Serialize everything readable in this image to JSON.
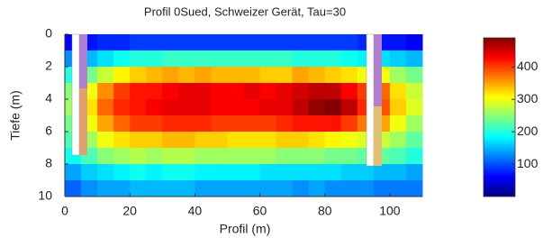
{
  "chart_data": {
    "type": "heatmap",
    "title": "Profil 0Sued, Schweizer Gerät, Tau=30",
    "xlabel": "Profil (m)",
    "ylabel": "Tiefe (m)",
    "xbins": [
      0,
      5,
      10,
      15,
      20,
      25,
      30,
      35,
      40,
      45,
      50,
      55,
      60,
      65,
      70,
      75,
      80,
      85,
      90,
      95,
      100,
      105,
      110
    ],
    "ybins": [
      0,
      1,
      2,
      3,
      4,
      5,
      6,
      7,
      8,
      9,
      10
    ],
    "z": [
      [
        60,
        70,
        80,
        80,
        90,
        90,
        90,
        90,
        90,
        90,
        90,
        90,
        90,
        90,
        90,
        90,
        90,
        90,
        80,
        70,
        70,
        60
      ],
      [
        130,
        150,
        170,
        190,
        200,
        200,
        210,
        210,
        210,
        210,
        210,
        210,
        210,
        210,
        200,
        200,
        200,
        190,
        180,
        170,
        160,
        150
      ],
      [
        200,
        240,
        280,
        310,
        330,
        340,
        350,
        340,
        350,
        340,
        340,
        340,
        330,
        330,
        350,
        340,
        330,
        320,
        300,
        300,
        260,
        240
      ],
      [
        250,
        300,
        360,
        400,
        420,
        420,
        430,
        440,
        440,
        430,
        430,
        440,
        430,
        440,
        450,
        460,
        460,
        430,
        400,
        380,
        320,
        280
      ],
      [
        260,
        320,
        380,
        410,
        420,
        430,
        440,
        440,
        440,
        430,
        430,
        430,
        440,
        440,
        460,
        480,
        490,
        460,
        410,
        390,
        330,
        290
      ],
      [
        240,
        300,
        350,
        380,
        400,
        400,
        410,
        410,
        410,
        400,
        400,
        400,
        400,
        410,
        420,
        420,
        420,
        400,
        370,
        350,
        300,
        260
      ],
      [
        220,
        260,
        300,
        320,
        330,
        330,
        340,
        340,
        330,
        330,
        320,
        320,
        320,
        330,
        330,
        320,
        310,
        300,
        290,
        280,
        260,
        230
      ],
      [
        190,
        220,
        250,
        260,
        270,
        260,
        270,
        270,
        260,
        260,
        260,
        260,
        260,
        250,
        250,
        250,
        240,
        240,
        230,
        230,
        220,
        200
      ],
      [
        140,
        160,
        170,
        180,
        190,
        180,
        190,
        190,
        180,
        180,
        180,
        180,
        170,
        170,
        170,
        170,
        170,
        160,
        160,
        150,
        150,
        140
      ],
      [
        110,
        130,
        140,
        140,
        150,
        150,
        150,
        150,
        140,
        140,
        140,
        140,
        140,
        140,
        130,
        140,
        130,
        130,
        130,
        120,
        120,
        120
      ]
    ],
    "xlim": [
      0,
      110
    ],
    "ylim": [
      0,
      10
    ],
    "y_inverted": true,
    "xticks": [
      0,
      20,
      40,
      60,
      80,
      100
    ],
    "yticks": [
      0,
      2,
      4,
      6,
      8,
      10
    ],
    "colormap": "jet",
    "clim": [
      0,
      490
    ],
    "cticks": [
      100,
      200,
      300,
      400
    ]
  }
}
